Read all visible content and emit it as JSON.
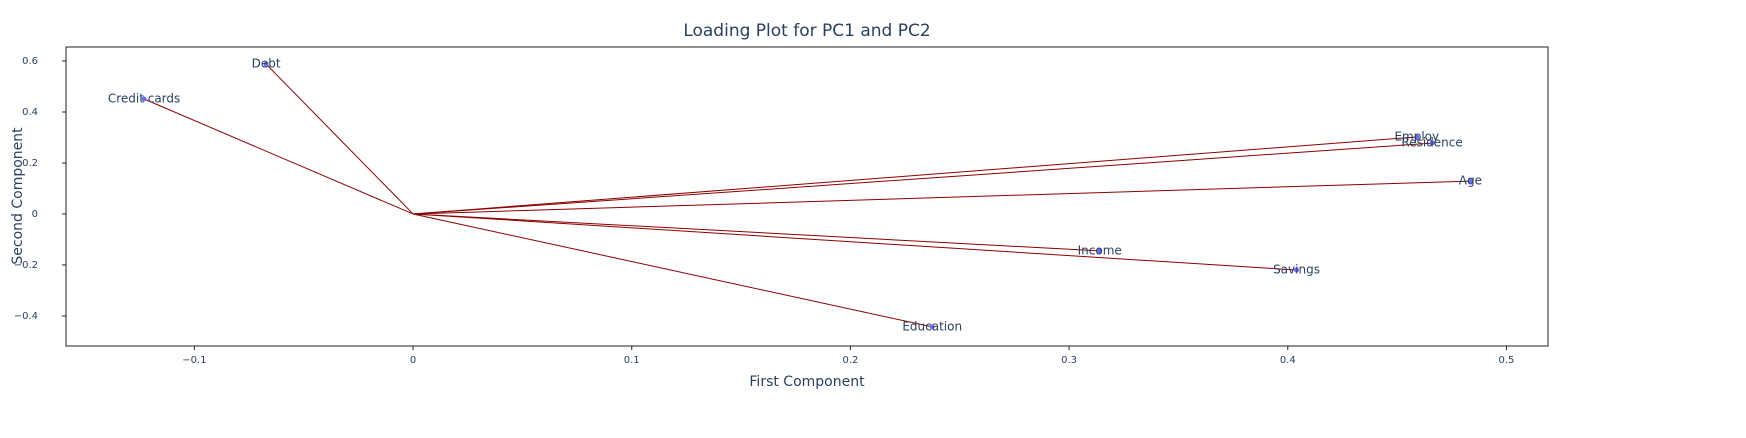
{
  "chart_data": {
    "type": "scatter",
    "title": "Loading Plot for PC1 and PC2",
    "x_label": "First Component",
    "y_label": "Second Component",
    "labels": [
      "Debt",
      "Credit cards",
      "Employ",
      "Residence",
      "Age",
      "Income",
      "Savings",
      "Education"
    ],
    "x": [
      -0.0672,
      -0.123,
      0.459,
      0.466,
      0.4835,
      0.314,
      0.404,
      0.2374
    ],
    "y": [
      0.588,
      0.451,
      0.302,
      0.278,
      0.129,
      -0.145,
      -0.22,
      -0.443
    ],
    "line_color": "#8b0000",
    "marker_color": "#636efa",
    "xlim": [
      -0.1587,
      0.519
    ],
    "xticks": [
      {
        "value": -0.1,
        "label": "−0.1"
      },
      0,
      0.1,
      0.2,
      0.3,
      0.4,
      0.5
    ],
    "ylim": [
      -0.518,
      0.655
    ],
    "yticks": [
      {
        "value": -0.4,
        "label": "−0.4"
      },
      {
        "value": -0.2,
        "label": "−0.2"
      },
      0,
      0.2,
      0.4,
      0.6
    ]
  }
}
